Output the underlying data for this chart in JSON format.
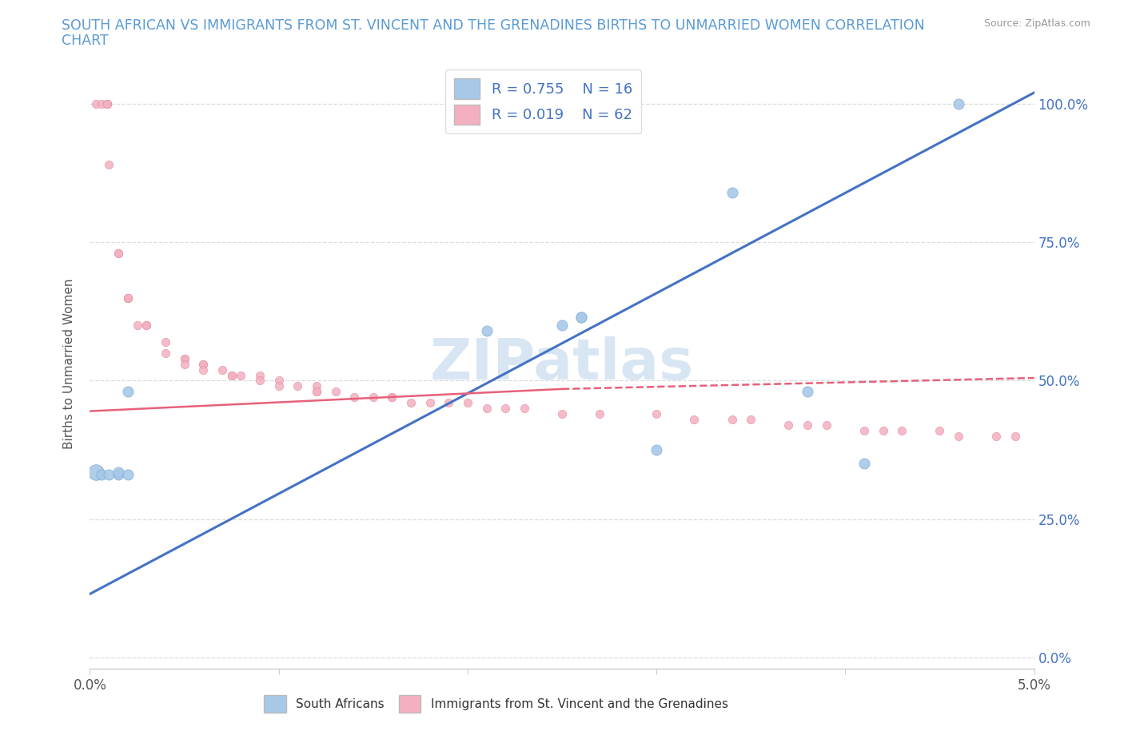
{
  "title_line1": "SOUTH AFRICAN VS IMMIGRANTS FROM ST. VINCENT AND THE GRENADINES BIRTHS TO UNMARRIED WOMEN CORRELATION",
  "title_line2": "CHART",
  "source": "Source: ZipAtlas.com",
  "ylabel": "Births to Unmarried Women",
  "yticks_labels": [
    "0.0%",
    "25.0%",
    "50.0%",
    "75.0%",
    "100.0%"
  ],
  "ytick_vals": [
    0.0,
    0.25,
    0.5,
    0.75,
    1.0
  ],
  "xlim": [
    0.0,
    0.05
  ],
  "ylim": [
    -0.02,
    1.08
  ],
  "blue_color": "#A8C8E8",
  "pink_color": "#F4B0C0",
  "blue_line_color": "#4472C4",
  "pink_line_color": "#E8607A",
  "title_color": "#5B9BD5",
  "watermark_color": "#C8DCF0",
  "sa_marker_size": 90,
  "svg_marker_size": 55,
  "sa_large_marker_size": 200,
  "blue_line_x0": 0.0,
  "blue_line_y0": 0.115,
  "blue_line_x1": 0.05,
  "blue_line_y1": 1.02,
  "pink_line_solid_x0": 0.0,
  "pink_line_solid_y0": 0.445,
  "pink_line_solid_x1": 0.025,
  "pink_line_solid_y1": 0.485,
  "pink_line_dash_x0": 0.025,
  "pink_line_dash_y0": 0.485,
  "pink_line_dash_x1": 0.05,
  "pink_line_dash_y1": 0.505,
  "sa_x": [
    0.0003,
    0.0006,
    0.001,
    0.0015,
    0.0015,
    0.002,
    0.002,
    0.021,
    0.025,
    0.026,
    0.026,
    0.03,
    0.034,
    0.038,
    0.041,
    0.046
  ],
  "sa_y": [
    0.335,
    0.33,
    0.33,
    0.33,
    0.335,
    0.48,
    0.33,
    0.59,
    0.6,
    0.615,
    0.615,
    0.375,
    0.84,
    0.48,
    0.35,
    1.0
  ],
  "svg_x": [
    0.0003,
    0.0006,
    0.0009,
    0.0009,
    0.0009,
    0.001,
    0.0015,
    0.0015,
    0.002,
    0.002,
    0.002,
    0.0025,
    0.003,
    0.003,
    0.004,
    0.004,
    0.005,
    0.005,
    0.005,
    0.006,
    0.006,
    0.006,
    0.007,
    0.0075,
    0.0075,
    0.008,
    0.009,
    0.009,
    0.01,
    0.01,
    0.011,
    0.012,
    0.012,
    0.012,
    0.013,
    0.014,
    0.015,
    0.016,
    0.016,
    0.017,
    0.018,
    0.019,
    0.02,
    0.021,
    0.022,
    0.023,
    0.025,
    0.027,
    0.03,
    0.032,
    0.034,
    0.035,
    0.037,
    0.038,
    0.039,
    0.041,
    0.042,
    0.043,
    0.045,
    0.046,
    0.048,
    0.049
  ],
  "svg_y": [
    1.0,
    1.0,
    1.0,
    1.0,
    1.0,
    0.89,
    0.73,
    0.73,
    0.65,
    0.65,
    0.65,
    0.6,
    0.6,
    0.6,
    0.57,
    0.55,
    0.54,
    0.54,
    0.53,
    0.53,
    0.53,
    0.52,
    0.52,
    0.51,
    0.51,
    0.51,
    0.51,
    0.5,
    0.5,
    0.49,
    0.49,
    0.49,
    0.48,
    0.48,
    0.48,
    0.47,
    0.47,
    0.47,
    0.47,
    0.46,
    0.46,
    0.46,
    0.46,
    0.45,
    0.45,
    0.45,
    0.44,
    0.44,
    0.44,
    0.43,
    0.43,
    0.43,
    0.42,
    0.42,
    0.42,
    0.41,
    0.41,
    0.41,
    0.41,
    0.4,
    0.4,
    0.4
  ]
}
